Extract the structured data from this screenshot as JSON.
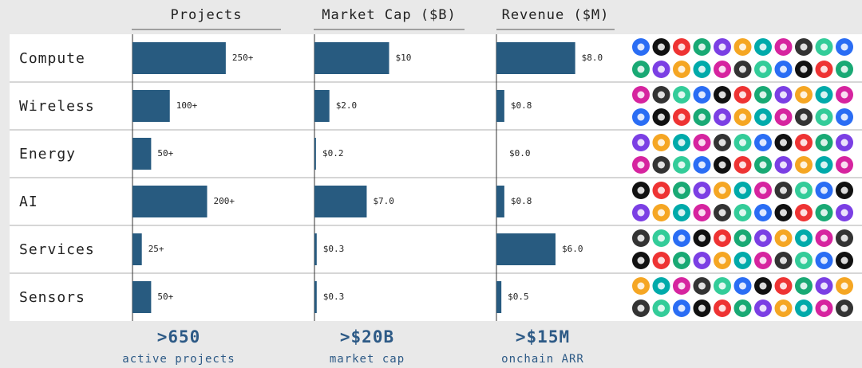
{
  "chart_data": {
    "type": "bar",
    "orientation": "horizontal",
    "categories": [
      "Compute",
      "Wireless",
      "Energy",
      "AI",
      "Services",
      "Sensors"
    ],
    "series": [
      {
        "name": "Projects",
        "color": "#285b80",
        "xlim": [
          0,
          400
        ],
        "values": [
          250,
          100,
          50,
          200,
          25,
          50
        ],
        "value_labels": [
          "250+",
          "100+",
          "50+",
          "200+",
          "25+",
          "50+"
        ]
      },
      {
        "name": "Market Cap ($B)",
        "color": "#285b80",
        "xlim": [
          0,
          20
        ],
        "values": [
          10,
          2.0,
          0.2,
          7.0,
          0.3,
          0.3
        ],
        "value_labels": [
          "$10",
          "$2.0",
          "$0.2",
          "$7.0",
          "$0.3",
          "$0.3"
        ]
      },
      {
        "name": "Revenue ($M)",
        "color": "#285b80",
        "xlim": [
          0,
          12
        ],
        "values": [
          8.0,
          0.8,
          0.0,
          0.8,
          6.0,
          0.5
        ],
        "value_labels": [
          "$8.0",
          "$0.8",
          "$0.0",
          "$0.8",
          "$6.0",
          "$0.5"
        ]
      }
    ]
  },
  "summary": [
    {
      "value": ">650",
      "label": "active projects"
    },
    {
      "value": ">$20B",
      "label": "market cap"
    },
    {
      "value": ">$15M",
      "label": "onchain ARR"
    }
  ]
}
